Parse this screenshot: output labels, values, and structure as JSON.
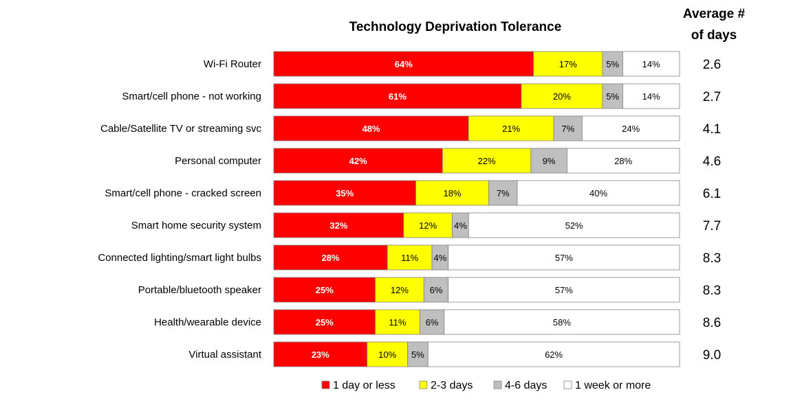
{
  "chart_data": {
    "type": "bar",
    "orientation": "horizontal",
    "stacked": true,
    "percent_stacked": true,
    "title": "Technology Deprivation Tolerance",
    "side_column_title": [
      "Average #",
      "of days"
    ],
    "categories": [
      "Wi-Fi Router",
      "Smart/cell phone - not working",
      "Cable/Satellite TV or streaming svc",
      "Personal computer",
      "Smart/cell phone - cracked screen",
      "Smart home security system",
      "Connected lighting/smart light bulbs",
      "Portable/bluetooth speaker",
      "Health/wearable device",
      "Virtual assistant"
    ],
    "series": [
      {
        "name": "1 day or less",
        "color": "#ff0000",
        "label_color": "#ffffff",
        "values": [
          64,
          61,
          48,
          42,
          35,
          32,
          28,
          25,
          25,
          23
        ]
      },
      {
        "name": "2-3 days",
        "color": "#ffff00",
        "label_color": "#000000",
        "values": [
          17,
          20,
          21,
          22,
          18,
          12,
          11,
          12,
          11,
          10
        ]
      },
      {
        "name": "4-6 days",
        "color": "#bfbfbf",
        "label_color": "#000000",
        "values": [
          5,
          5,
          7,
          9,
          7,
          4,
          4,
          6,
          6,
          5
        ]
      },
      {
        "name": "1 week or more",
        "color": "#ffffff",
        "label_color": "#000000",
        "values": [
          14,
          14,
          24,
          28,
          40,
          52,
          57,
          57,
          58,
          62
        ]
      }
    ],
    "average_days": [
      "2.6",
      "2.7",
      "4.1",
      "4.6",
      "6.1",
      "7.7",
      "8.3",
      "8.3",
      "8.6",
      "9.0"
    ],
    "value_suffix": "%",
    "legend_position": "bottom",
    "grid": false
  }
}
